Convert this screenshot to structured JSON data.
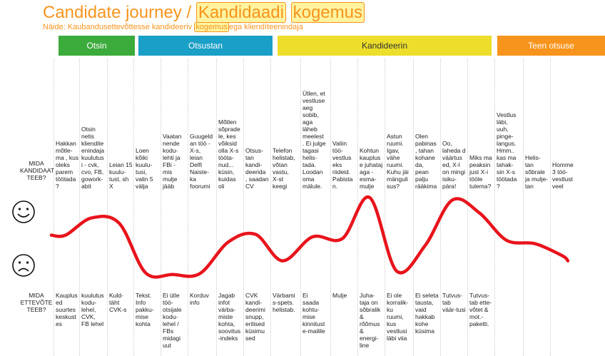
{
  "header": {
    "title_prefix": "Candidate journey / ",
    "title_hl1": "Kandidaadi",
    "title_hl2": "kogemus",
    "subtitle_pre": "Näide: Kaubandusettevõttesse kandideeriv ",
    "subtitle_hl": "kogemus",
    "subtitle_post": "ega kliendíteenindaja"
  },
  "phases": [
    {
      "label": "Otsin",
      "color": "#3bab3b"
    },
    {
      "label": "Otsustan",
      "color": "#1a9fc6"
    },
    {
      "label": "Kandideerin",
      "color": "#ecde2a"
    },
    {
      "label": "Teen otsuse",
      "color": "#f7941d"
    }
  ],
  "rows": {
    "candidate_label": "MIDA KANDIDAAT TEEB?",
    "employer_label": "MIDA ETTEVÕTE TEEB?"
  },
  "faces": {
    "happy": "happy-face-icon",
    "sad": "sad-face-icon"
  },
  "candidate": [
    "Hakkan mõtle-ma , kus oleks parem töötada ?",
    "Otsin netis klienditeenindaja kuulutusi - cvk, cvo, FB, gowork-abit",
    "Leian 15 kuulu-tust, sh X",
    "Loen kõiki kuulu-tusi, valin 5 välja",
    "Vaatan nende kodu-lehti ja FBi - mis mulje jääb",
    "Guugeld an töö - X-s, leian Delfi Naiste-ka foorumi",
    "Mõtlen sõprade le, kes võiksid olla X-s tööta-nud... küsin, kuidas oli",
    "Otsus-tan kandi-deerida , saadan CV",
    "Telefon helistab, võtan vastu, X-st keegi",
    "Ütlen, et vestluse aeg sobib, aga läheb meelest . Ei julge tagasi helis-tada. Loodan oma mälule.",
    "Valiin töö-vestlus eks riideid. Pabista n.",
    "Kohtun kauplus e juhataj aga - esma-mulje",
    "Astun ruumi. Igav, vähe ruumi. Kuhu jäi mänguli sus?",
    "Olen pabinas , tahan kohane da, pean palju rääkima",
    "Oo, laheda d väärtus ed, X-l on mingi isiku-pära!",
    "Miks ma peaksin just X-i tööle tulema?",
    "Vestlus läbi, uuh, pinge-langus. Hmm.. kas ma tahak-sin X-s töötada ?",
    "Helis-tan sõbrale ja mulje-tan",
    "Homme 3 töö-vestlust veel"
  ],
  "employer": [
    "Kauplus ed suurtes keskust es",
    "kuulutus kodu-lehel, CVK, FB lehel",
    "Kuld-täht CVK-s",
    "Tekst. Info pakku-mise kohta",
    "Ei ütle töö-otsijale kodu-lehel / FBs midagi uut",
    "Korduv info",
    "Jagab infot värba-miste kohta, soovitus -indeks",
    "CVK kandi-deerimi snupp, erilised küsimu sed",
    "Värbami s-spets. helistab.",
    "Ei saada kohtu-mise kinnitust e-mailile",
    "Mulje",
    "Juha-taja on sõbralik & rõõmus & energi-line",
    "Ei ole korralik-ku ruumi, kus vestlusi läbi viia",
    "Ei seleta tausta, vaid hakkab kohe küsima",
    "Tutvus-tab väär-tusi",
    "Tutvus-tab ette-võtet & mot.-paketti.",
    "",
    "",
    ""
  ],
  "chart_data": {
    "type": "line",
    "title": "",
    "xlabel": "",
    "ylabel": "",
    "ylim": [
      0,
      1
    ],
    "x": [
      1,
      2,
      3,
      4,
      5,
      6,
      7,
      8,
      9,
      10,
      11,
      12,
      13,
      14,
      15,
      16,
      17,
      18,
      19
    ],
    "series": [
      {
        "values": [
          0.52,
          0.72,
          0.66,
          0.08,
          0.06,
          0.07,
          0.44,
          0.53,
          0.22,
          0.5,
          0.48,
          0.96,
          0.1,
          0.4,
          0.93,
          0.78,
          0.46,
          0.42,
          0.28
        ]
      }
    ]
  }
}
